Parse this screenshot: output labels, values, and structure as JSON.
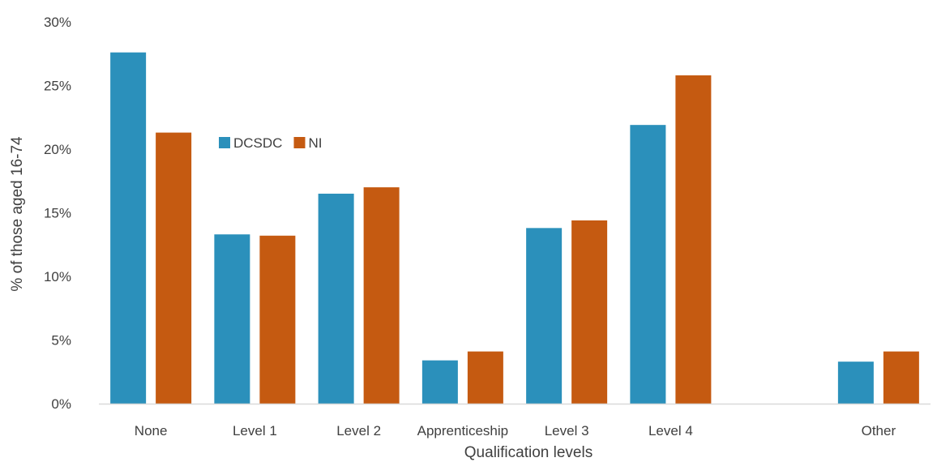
{
  "chart_data": {
    "type": "bar",
    "title": "",
    "xlabel": "Qualification levels",
    "ylabel": "% of those aged 16-74",
    "ylim": [
      0,
      30
    ],
    "y_ticks": [
      0,
      5,
      10,
      15,
      20,
      25,
      30
    ],
    "y_tick_labels": [
      "0%",
      "5%",
      "10%",
      "15%",
      "20%",
      "25%",
      "30%"
    ],
    "categories": [
      "None",
      "Level 1",
      "Level 2",
      "Apprenticeship",
      "Level 3",
      "Level 4",
      "",
      "Other"
    ],
    "series": [
      {
        "name": "DCSDC",
        "color": "#2b90bb",
        "values": [
          27.6,
          13.3,
          16.5,
          3.4,
          13.8,
          21.9,
          null,
          3.3
        ]
      },
      {
        "name": "NI",
        "color": "#c55a11",
        "values": [
          21.3,
          13.2,
          17.0,
          4.1,
          14.4,
          25.8,
          null,
          4.1
        ]
      }
    ],
    "grid": false,
    "legend_position": "inside-top-left"
  }
}
